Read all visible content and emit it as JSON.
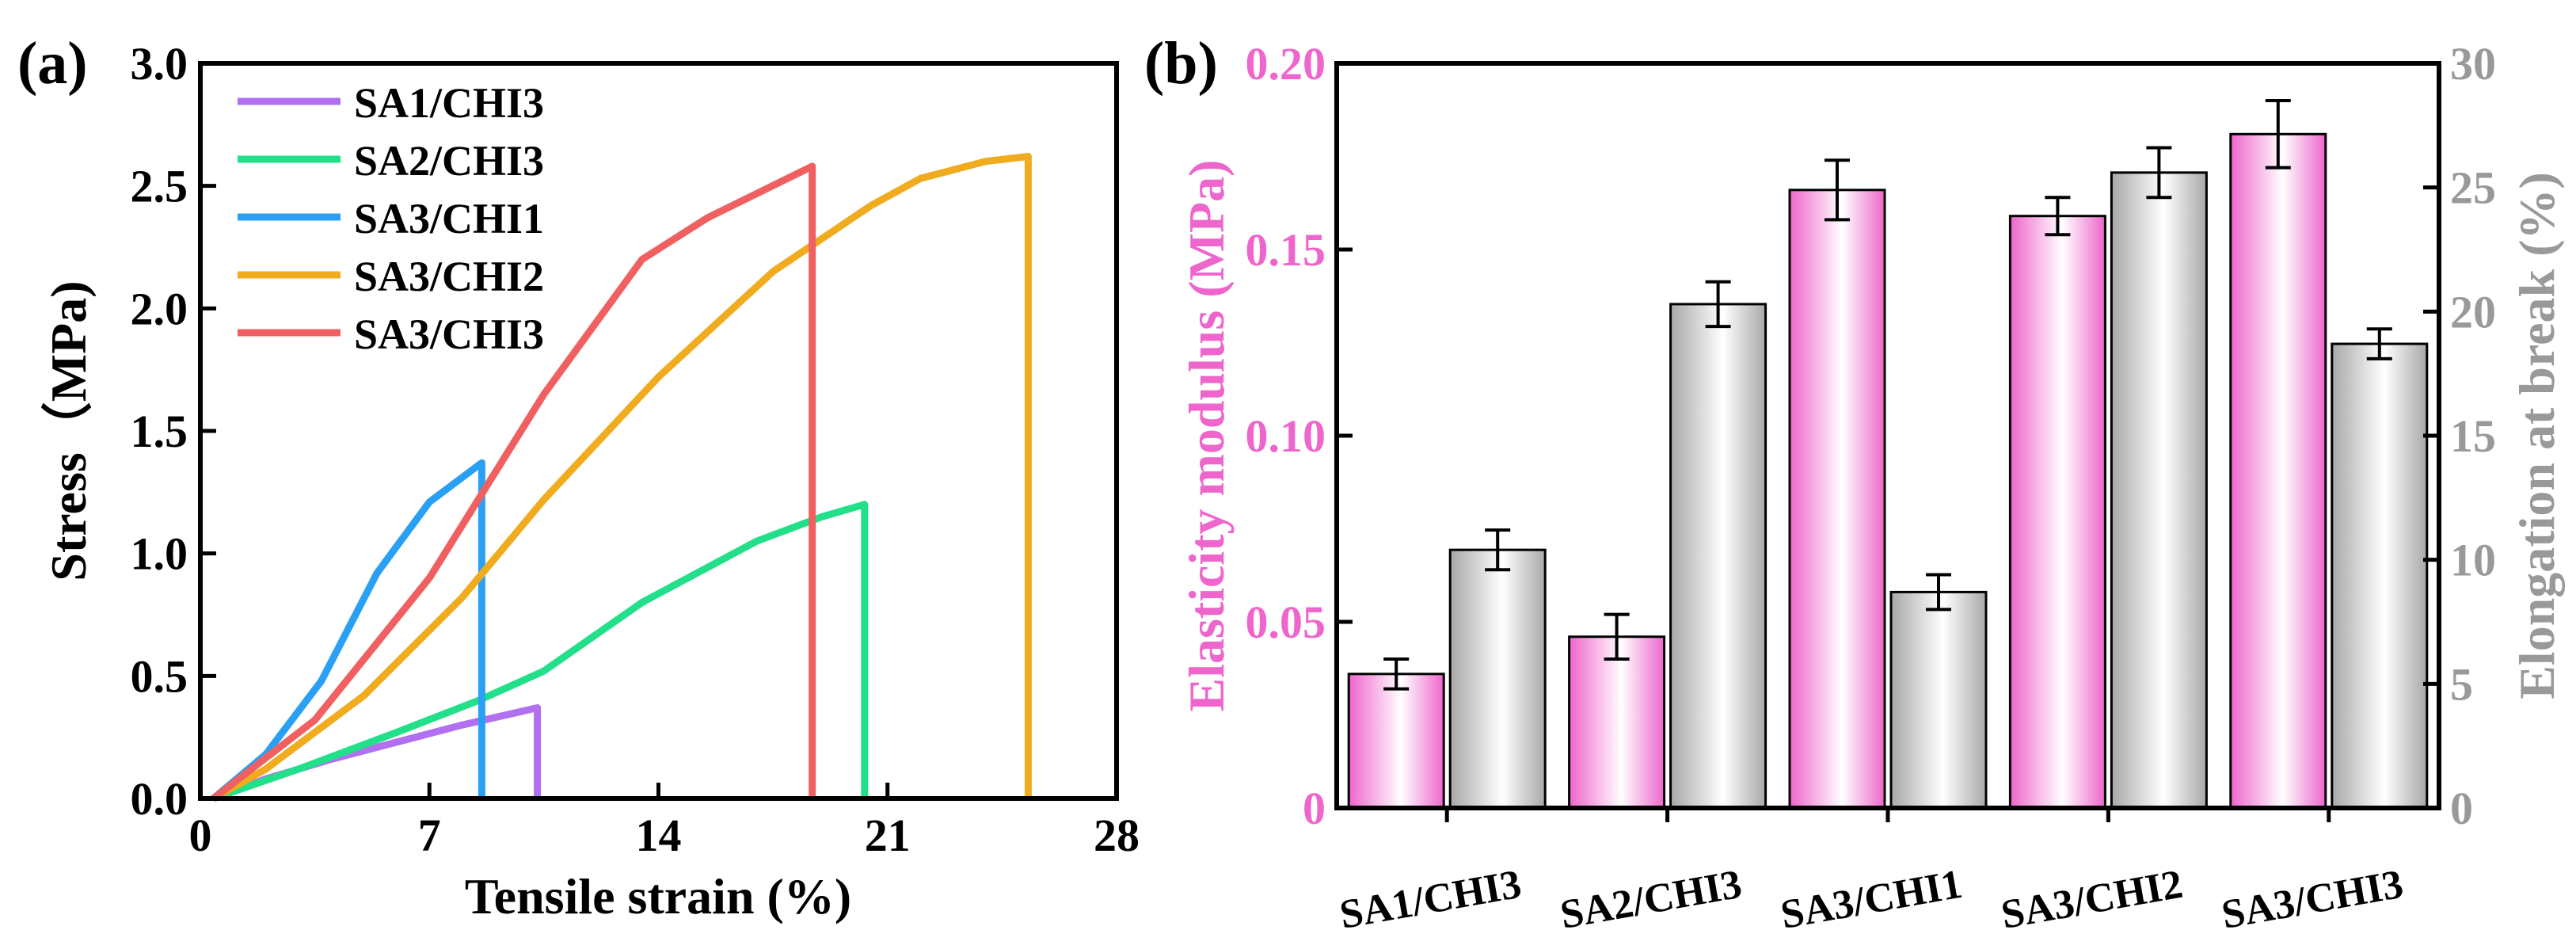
{
  "chart_data": [
    {
      "panel_label": "(a)",
      "type": "line",
      "xlabel": "Tensile strain (%)",
      "ylabel": "Stress（MPa)",
      "xlim": [
        0,
        28
      ],
      "ylim": [
        0,
        3.0
      ],
      "xticks": [
        0,
        7,
        14,
        21,
        28
      ],
      "yticks": [
        0.0,
        0.5,
        1.0,
        1.5,
        2.0,
        2.5,
        3.0
      ],
      "legend_position": "top-left",
      "series": [
        {
          "name": "SA1/CHI3",
          "color": "#b070f0",
          "x": [
            0.4,
            2.0,
            4.0,
            6.0,
            8.0,
            10.3,
            10.3
          ],
          "y": [
            0.0,
            0.08,
            0.16,
            0.23,
            0.3,
            0.37,
            0.0
          ]
        },
        {
          "name": "SA2/CHI3",
          "color": "#22e08a",
          "x": [
            0.4,
            3.0,
            6.0,
            8.5,
            10.5,
            13.5,
            17.0,
            19.0,
            20.3,
            20.3
          ],
          "y": [
            0.0,
            0.12,
            0.27,
            0.4,
            0.52,
            0.8,
            1.05,
            1.15,
            1.2,
            0.0
          ]
        },
        {
          "name": "SA3/CHI1",
          "color": "#2aa0f5",
          "x": [
            0.4,
            2.0,
            3.7,
            5.4,
            7.0,
            8.6,
            8.6
          ],
          "y": [
            0.0,
            0.18,
            0.48,
            0.92,
            1.21,
            1.37,
            0.0
          ]
        },
        {
          "name": "SA3/CHI2",
          "color": "#f0ac1e",
          "x": [
            0.4,
            2.0,
            5.0,
            8.0,
            10.5,
            14.0,
            17.5,
            20.5,
            22.0,
            24.0,
            25.3,
            25.3
          ],
          "y": [
            0.0,
            0.12,
            0.42,
            0.82,
            1.22,
            1.72,
            2.15,
            2.42,
            2.53,
            2.6,
            2.62,
            0.0
          ]
        },
        {
          "name": "SA3/CHI3",
          "color": "#f06060",
          "x": [
            0.4,
            3.5,
            7.0,
            10.5,
            13.5,
            15.5,
            18.7,
            18.7
          ],
          "y": [
            0.0,
            0.32,
            0.9,
            1.65,
            2.2,
            2.37,
            2.58,
            0.0
          ]
        }
      ]
    },
    {
      "panel_label": "(b)",
      "type": "bar",
      "categories": [
        "SA1/CHI3",
        "SA2/CHI3",
        "SA3/CHI1",
        "SA3/CHI2",
        "SA3/CHI3"
      ],
      "xlabel": "",
      "series": [
        {
          "name": "Elasticity modulus (MPa)",
          "axis": "left",
          "color": "#ee66cc",
          "values": [
            0.036,
            0.046,
            0.166,
            0.159,
            0.181
          ],
          "errors": [
            0.004,
            0.006,
            0.008,
            0.005,
            0.009
          ]
        },
        {
          "name": "Elongation at break (%)",
          "axis": "right",
          "color": "#999999",
          "values": [
            10.4,
            20.3,
            8.7,
            25.6,
            18.7
          ],
          "errors": [
            0.8,
            0.9,
            0.7,
            1.0,
            0.6
          ]
        }
      ],
      "left_axis": {
        "label": "Elasticity modulus (MPa)",
        "ylim": [
          0,
          0.2
        ],
        "ticks": [
          0,
          0.05,
          0.1,
          0.15,
          0.2
        ],
        "tick_labels": [
          "0",
          "0.05",
          "0.10",
          "0.15",
          "0.20"
        ]
      },
      "right_axis": {
        "label": "Elongation at break (%)",
        "ylim": [
          0,
          30
        ],
        "ticks": [
          0,
          5,
          10,
          15,
          20,
          25,
          30
        ],
        "tick_labels": [
          "0",
          "5",
          "10",
          "15",
          "20",
          "25",
          "30"
        ]
      }
    }
  ]
}
